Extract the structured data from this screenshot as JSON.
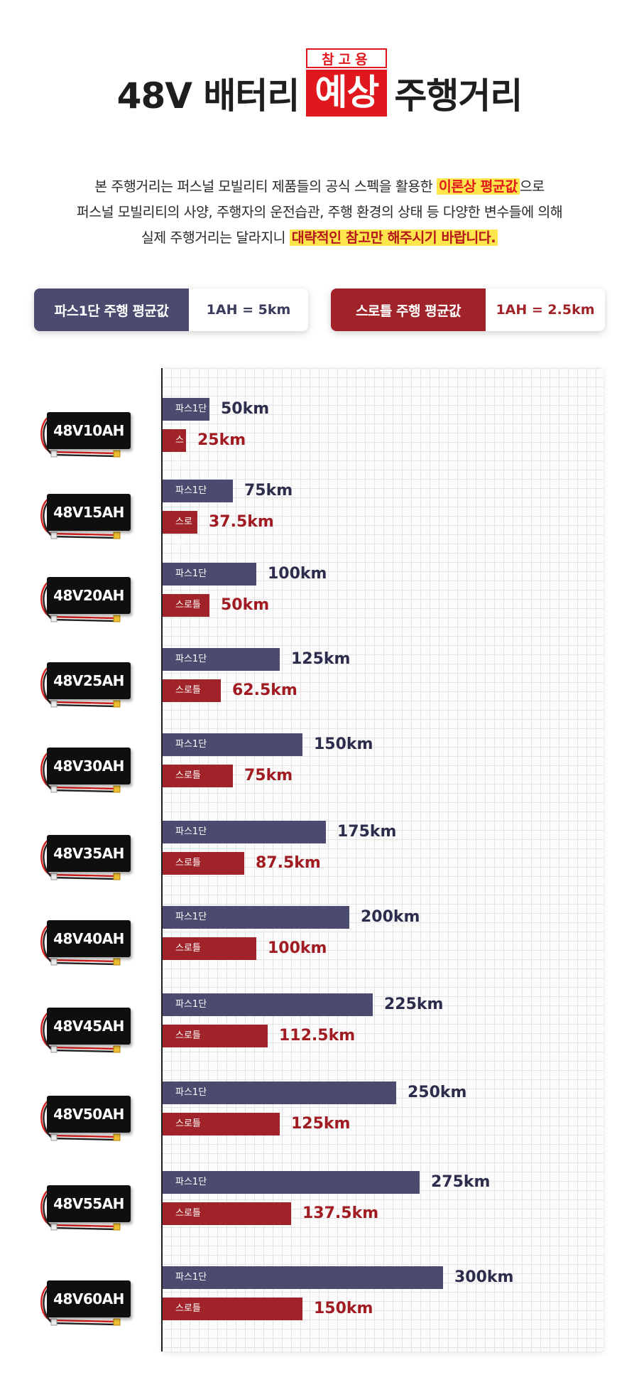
{
  "header": {
    "title_left": "48V 배터리",
    "title_tag": "참고용",
    "title_box": "예상",
    "title_right": "주행거리"
  },
  "description": {
    "line1_a": "본 주행거리는 퍼스널 모빌리티 제품들의 공식 스펙을 활용한 ",
    "line1_hl": "이론상 평균값",
    "line1_b": "으로",
    "line2": "퍼스널 모빌리티의 사양, 주행자의 운전습관, 주행 환경의 상태 등 다양한 변수들에 의해",
    "line3_a": "실제 주행거리는 달라지니 ",
    "line3_hl": "대략적인 참고만 해주시기 바랍니다."
  },
  "info": {
    "pas_label": "파스1단 주행 평균값",
    "pas_value": "1AH = 5km",
    "throttle_label": "스로틀 주행 평균값",
    "throttle_value": "1AH = 2.5km"
  },
  "colors": {
    "pas": "#4a4b6e",
    "throttle": "#9f2329",
    "accent_red": "#e0171d",
    "highlight": "#fde64b"
  },
  "chart_data": {
    "type": "bar",
    "orientation": "horizontal",
    "categories": [
      "48V10AH",
      "48V15AH",
      "48V20AH",
      "48V25AH",
      "48V30AH",
      "48V35AH",
      "48V40AH",
      "48V45AH",
      "48V50AH",
      "48V55AH",
      "48V60AH"
    ],
    "series": [
      {
        "name": "파스1단",
        "values": [
          50,
          75,
          100,
          125,
          150,
          175,
          200,
          225,
          250,
          275,
          300
        ],
        "labels": [
          "50km",
          "75km",
          "100km",
          "125km",
          "150km",
          "175km",
          "200km",
          "225km",
          "250km",
          "275km",
          "300km"
        ]
      },
      {
        "name": "스로틀",
        "values": [
          25,
          37.5,
          50,
          62.5,
          75,
          87.5,
          100,
          112.5,
          125,
          137.5,
          150
        ],
        "labels": [
          "25km",
          "37.5km",
          "50km",
          "62.5km",
          "75km",
          "87.5km",
          "100km",
          "112.5km",
          "125km",
          "137.5km",
          "150km"
        ]
      }
    ],
    "unit": "km",
    "grid": true,
    "title": ""
  }
}
